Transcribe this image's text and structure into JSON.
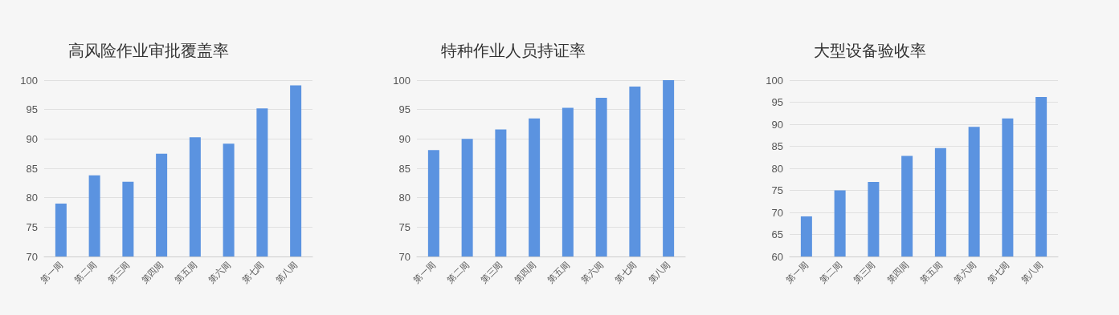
{
  "chart_data": [
    {
      "type": "bar",
      "title": "高风险作业审批覆盖率",
      "categories": [
        "第一周",
        "第二周",
        "第三周",
        "第四周",
        "第五周",
        "第六周",
        "第七周",
        "第八周"
      ],
      "values": [
        79,
        83.8,
        82.7,
        87.5,
        90.3,
        89.2,
        95.2,
        99.1
      ],
      "color": "#5b93e0",
      "ylim": [
        70,
        100
      ],
      "yticks": [
        70,
        75,
        80,
        85,
        90,
        95,
        100
      ],
      "grid": "y"
    },
    {
      "type": "bar",
      "title": "特种作业人员持证率",
      "categories": [
        "第一周",
        "第二周",
        "第三周",
        "第四周",
        "第五周",
        "第六周",
        "第七周",
        "第八周"
      ],
      "values": [
        88.1,
        90,
        91.6,
        93.5,
        95.3,
        97,
        98.9,
        100
      ],
      "color": "#5b93e0",
      "ylim": [
        70,
        100
      ],
      "yticks": [
        70,
        75,
        80,
        85,
        90,
        95,
        100
      ],
      "grid": "y"
    },
    {
      "type": "bar",
      "title": "大型设备验收率",
      "categories": [
        "第一周",
        "第二周",
        "第三周",
        "第四周",
        "第五周",
        "第六周",
        "第七周",
        "第八周"
      ],
      "values": [
        69.1,
        75,
        76.9,
        82.8,
        84.6,
        89.4,
        91.3,
        96.2
      ],
      "color": "#5b93e0",
      "ylim": [
        60,
        100
      ],
      "yticks": [
        60,
        65,
        70,
        75,
        80,
        85,
        90,
        95,
        100
      ],
      "grid": "y"
    }
  ]
}
